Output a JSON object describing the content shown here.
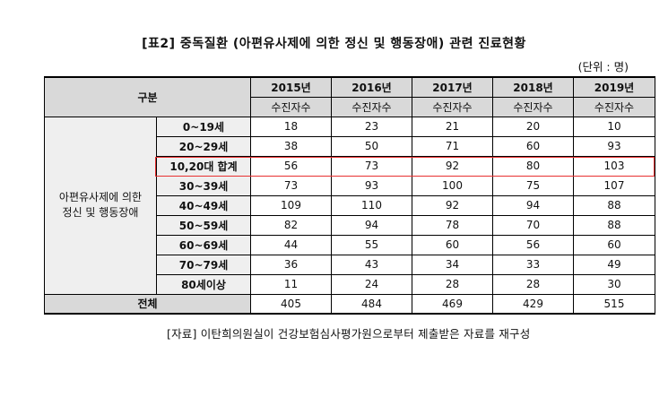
{
  "title": "[표2] 중독질환 (아편유사제에 의한 정신 및 행동장애) 관련 진료현황",
  "unit": "(단위 : 명)",
  "header": {
    "category_label": "구분",
    "years": [
      "2015년",
      "2016년",
      "2017년",
      "2018년",
      "2019년"
    ],
    "sub_label": "수진자수"
  },
  "group_label_line1": "아편유사제에 의한",
  "group_label_line2": "정신 및 행동장애",
  "rows": [
    {
      "age": "0~19세",
      "values": [
        "18",
        "23",
        "21",
        "20",
        "10"
      ]
    },
    {
      "age": "20~29세",
      "values": [
        "38",
        "50",
        "71",
        "60",
        "93"
      ]
    },
    {
      "age": "10,20대 합계",
      "values": [
        "56",
        "73",
        "92",
        "80",
        "103"
      ]
    },
    {
      "age": "30~39세",
      "values": [
        "73",
        "93",
        "100",
        "75",
        "107"
      ]
    },
    {
      "age": "40~49세",
      "values": [
        "109",
        "110",
        "92",
        "94",
        "88"
      ]
    },
    {
      "age": "50~59세",
      "values": [
        "82",
        "94",
        "78",
        "70",
        "88"
      ]
    },
    {
      "age": "60~69세",
      "values": [
        "44",
        "55",
        "60",
        "56",
        "60"
      ]
    },
    {
      "age": "70~79세",
      "values": [
        "36",
        "43",
        "34",
        "33",
        "49"
      ]
    },
    {
      "age": "80세이상",
      "values": [
        "11",
        "24",
        "28",
        "28",
        "30"
      ]
    }
  ],
  "total": {
    "label": "전체",
    "values": [
      "405",
      "484",
      "469",
      "429",
      "515"
    ]
  },
  "source": "[자료] 이탄희의원실이 건강보험심사평가원으로부터 제출받은 자료를 재구성",
  "highlight_color": "#e83030"
}
